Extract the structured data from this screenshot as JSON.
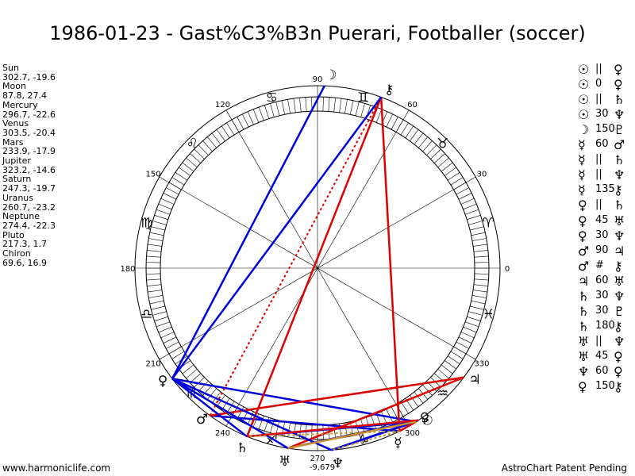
{
  "title": "1986-01-23 - Gast%C3%B3n Puerari, Footballer (soccer)",
  "footer": {
    "left": "www.harmoniclife.com",
    "right": "AstroChart Patent Pending"
  },
  "positions": [
    {
      "name": "Sun",
      "value": "302.7, -19.6"
    },
    {
      "name": "Moon",
      "value": "87.8, 27.4"
    },
    {
      "name": "Mercury",
      "value": "296.7, -22.6"
    },
    {
      "name": "Venus",
      "value": "303.5, -20.4"
    },
    {
      "name": "Mars",
      "value": "233.9, -17.9"
    },
    {
      "name": "Jupiter",
      "value": "323.2, -14.6"
    },
    {
      "name": "Saturn",
      "value": "247.3, -19.7"
    },
    {
      "name": "Uranus",
      "value": "260.7, -23.2"
    },
    {
      "name": "Neptune",
      "value": "274.4, -22.3"
    },
    {
      "name": "Pluto",
      "value": "217.3, 1.7"
    },
    {
      "name": "Chiron",
      "value": "69.6, 16.9"
    }
  ],
  "aspects": [
    {
      "p1": "☉",
      "type": "||",
      "p2": "♀"
    },
    {
      "p1": "☉",
      "type": "0",
      "p2": "♀"
    },
    {
      "p1": "☉",
      "type": "||",
      "p2": "♄"
    },
    {
      "p1": "☉",
      "type": "30",
      "p2": "♆"
    },
    {
      "p1": "☽",
      "type": "150",
      "p2": "♇"
    },
    {
      "p1": "☿",
      "type": "60",
      "p2": "♂"
    },
    {
      "p1": "☿",
      "type": "||",
      "p2": "♄"
    },
    {
      "p1": "☿",
      "type": "||",
      "p2": "♆"
    },
    {
      "p1": "☿",
      "type": "135",
      "p2": "⚷"
    },
    {
      "p1": "♀",
      "type": "||",
      "p2": "♄"
    },
    {
      "p1": "♀",
      "type": "45",
      "p2": "♅"
    },
    {
      "p1": "♀",
      "type": "30",
      "p2": "♆"
    },
    {
      "p1": "♂",
      "type": "90",
      "p2": "♃"
    },
    {
      "p1": "♂",
      "type": "#",
      "p2": "⚷"
    },
    {
      "p1": "♃",
      "type": "60",
      "p2": "♅"
    },
    {
      "p1": "♄",
      "type": "30",
      "p2": "♆"
    },
    {
      "p1": "♄",
      "type": "30",
      "p2": "♇"
    },
    {
      "p1": "♄",
      "type": "180",
      "p2": "⚷"
    },
    {
      "p1": "♅",
      "type": "||",
      "p2": "♆"
    },
    {
      "p1": "♅",
      "type": "45",
      "p2": "♀"
    },
    {
      "p1": "♆",
      "type": "60",
      "p2": "♀"
    },
    {
      "p1": "♀",
      "type": "150",
      "p2": "⚷"
    }
  ],
  "wheel": {
    "degree_labels": [
      {
        "deg": 0,
        "text": "0"
      },
      {
        "deg": 30,
        "text": "30"
      },
      {
        "deg": 60,
        "text": "60"
      },
      {
        "deg": 90,
        "text": "90"
      },
      {
        "deg": 120,
        "text": "120"
      },
      {
        "deg": 150,
        "text": "150"
      },
      {
        "deg": 180,
        "text": "180"
      },
      {
        "deg": 210,
        "text": "210"
      },
      {
        "deg": 240,
        "text": "240"
      },
      {
        "deg": 270,
        "text": "270"
      },
      {
        "deg": 300,
        "text": "300"
      },
      {
        "deg": 330,
        "text": "330"
      }
    ],
    "signs": [
      {
        "deg": 15,
        "glyph": "♈",
        "name": "aries"
      },
      {
        "deg": 45,
        "glyph": "♉",
        "name": "taurus"
      },
      {
        "deg": 75,
        "glyph": "♊",
        "name": "gemini"
      },
      {
        "deg": 105,
        "glyph": "♋",
        "name": "cancer"
      },
      {
        "deg": 135,
        "glyph": "♌",
        "name": "leo"
      },
      {
        "deg": 165,
        "glyph": "♍",
        "name": "virgo"
      },
      {
        "deg": 195,
        "glyph": "♎",
        "name": "libra"
      },
      {
        "deg": 225,
        "glyph": "♏",
        "name": "scorpio"
      },
      {
        "deg": 255,
        "glyph": "♐",
        "name": "sagittarius"
      },
      {
        "deg": 285,
        "glyph": "♑",
        "name": "capricorn"
      },
      {
        "deg": 315,
        "glyph": "♒",
        "name": "aquarius"
      },
      {
        "deg": 345,
        "glyph": "♓",
        "name": "pisces"
      }
    ],
    "planets": [
      {
        "name": "sun",
        "glyph": "☉",
        "lon": 302.7
      },
      {
        "name": "moon",
        "glyph": "☽",
        "lon": 87.8
      },
      {
        "name": "mercury",
        "glyph": "☿",
        "lon": 296.7
      },
      {
        "name": "venus",
        "glyph": "♀",
        "lon": 303.5
      },
      {
        "name": "mars",
        "glyph": "♂",
        "lon": 233.9
      },
      {
        "name": "jupiter",
        "glyph": "♃",
        "lon": 323.2
      },
      {
        "name": "saturn",
        "glyph": "♄",
        "lon": 247.3
      },
      {
        "name": "uranus",
        "glyph": "♅",
        "lon": 260.7
      },
      {
        "name": "neptune",
        "glyph": "♆",
        "lon": 274.4
      },
      {
        "name": "pluto",
        "glyph": "♀",
        "lon": 217.3
      },
      {
        "name": "chiron",
        "glyph": "⚷",
        "lon": 69.6
      }
    ],
    "midpoint_label": "-9,679",
    "aspect_lines": [
      {
        "a": "sun",
        "b": "saturn",
        "color": "#0000dd",
        "style": "solid"
      },
      {
        "a": "sun",
        "b": "neptune",
        "color": "#0000dd",
        "style": "solid"
      },
      {
        "a": "sun",
        "b": "pluto",
        "color": "#0000dd",
        "style": "solid"
      },
      {
        "a": "moon",
        "b": "pluto",
        "color": "#0000dd",
        "style": "solid"
      },
      {
        "a": "mercury",
        "b": "mars",
        "color": "#0000dd",
        "style": "solid"
      },
      {
        "a": "mercury",
        "b": "chiron",
        "color": "#dd0000",
        "style": "solid"
      },
      {
        "a": "venus",
        "b": "uranus",
        "color": "#0000dd",
        "style": "solid"
      },
      {
        "a": "venus",
        "b": "neptune",
        "color": "#0000dd",
        "style": "solid"
      },
      {
        "a": "mars",
        "b": "jupiter",
        "color": "#dd0000",
        "style": "solid"
      },
      {
        "a": "mars",
        "b": "chiron",
        "color": "#dd0000",
        "style": "dotted"
      },
      {
        "a": "jupiter",
        "b": "uranus",
        "color": "#dd0000",
        "style": "solid"
      },
      {
        "a": "saturn",
        "b": "chiron",
        "color": "#dd0000",
        "style": "solid"
      },
      {
        "a": "saturn",
        "b": "pluto",
        "color": "#0000dd",
        "style": "solid"
      },
      {
        "a": "uranus",
        "b": "pluto",
        "color": "#0000dd",
        "style": "solid"
      },
      {
        "a": "neptune",
        "b": "pluto",
        "color": "#0000dd",
        "style": "solid"
      },
      {
        "a": "pluto",
        "b": "chiron",
        "color": "#0000dd",
        "style": "solid"
      },
      {
        "a": "sun",
        "b": "mercury",
        "color": "#dd0000",
        "style": "solid"
      },
      {
        "a": "venus",
        "b": "saturn",
        "color": "#dd0000",
        "style": "solid"
      },
      {
        "a": "mercury",
        "b": "saturn",
        "color": "#c8902a",
        "style": "dotted"
      },
      {
        "a": "mercury",
        "b": "neptune",
        "color": "#c8902a",
        "style": "dotted"
      },
      {
        "a": "sun",
        "b": "uranus",
        "color": "#c8902a",
        "style": "solid"
      }
    ]
  }
}
